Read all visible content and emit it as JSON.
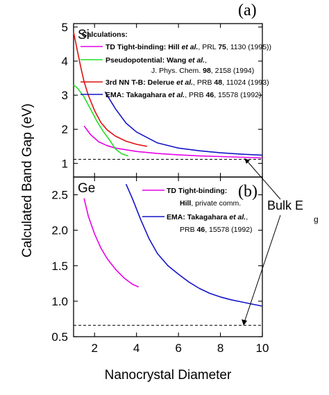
{
  "figure": {
    "panel_a_tag": "(a)",
    "panel_b_tag": "(b)",
    "shared_ylabel": "Calculated Band Gap (eV)",
    "xlabel": "Nanocrystal Diameter",
    "bulk_label": "Bulk E",
    "bulk_label_sub": "g",
    "colors": {
      "magenta": "#e600e6",
      "green": "#22dd22",
      "red": "#dd1111",
      "blue": "#1414c8",
      "dashed": "#000000"
    }
  },
  "chart_data": [
    {
      "type": "line",
      "panel": "a",
      "material": "Si",
      "ylabel": "(eV)",
      "xlim": [
        1,
        10
      ],
      "ylim": [
        0.6,
        5.1
      ],
      "x_ticks": [
        2,
        4,
        6,
        8,
        10
      ],
      "y_ticks": [
        1,
        2,
        3,
        4,
        5
      ],
      "legend_title": "Calculations:",
      "series": [
        {
          "name": "TD Tight-binding: Hill et al., PRL 75, 1130 (1995))",
          "legend_bold": "TD Tight-binding: Hill ",
          "legend_italic": "et al.",
          "legend_rest": ", PRL ",
          "legend_num": "75",
          "legend_tail": ", 1130 (1995))",
          "color": "#e600e6",
          "x": [
            1.5,
            1.8,
            2.2,
            2.6,
            3.0,
            4.0,
            5.0,
            6.0,
            7.0,
            8.0,
            9.0,
            10.0
          ],
          "y": [
            2.1,
            1.85,
            1.63,
            1.52,
            1.45,
            1.35,
            1.29,
            1.25,
            1.22,
            1.2,
            1.18,
            1.16
          ]
        },
        {
          "name": "Pseudopotential: Wang et al., J. Phys. Chem. 98, 2158 (1994)",
          "legend_bold": "Pseudopotential: Wang ",
          "legend_italic": "et al.",
          "legend_rest": ",",
          "legend_line2a": "J. Phys. Chem. ",
          "legend_line2b": "98",
          "legend_line2c": ", 2158 (1994)",
          "color": "#22dd22",
          "x": [
            1.0,
            1.2,
            1.5,
            1.8,
            2.1,
            2.4,
            2.7,
            3.0,
            3.3,
            3.6
          ],
          "y": [
            3.3,
            3.2,
            2.95,
            2.6,
            2.25,
            1.95,
            1.7,
            1.42,
            1.28,
            1.22
          ]
        },
        {
          "name": "3rd NN T-B: Delerue et al., PRB 48, 11024 (1993)",
          "legend_bold": "3rd NN T-B: Delerue ",
          "legend_italic": "et al.",
          "legend_rest": ", PRB ",
          "legend_num": "48",
          "legend_tail": ", 11024 (1993)",
          "color": "#dd1111",
          "x": [
            1.0,
            1.1,
            1.2,
            1.35,
            1.5,
            1.7,
            2.0,
            2.3,
            2.6,
            3.0,
            3.5,
            4.0,
            4.5
          ],
          "y": [
            4.85,
            4.55,
            4.25,
            3.8,
            3.4,
            3.0,
            2.55,
            2.2,
            1.98,
            1.8,
            1.65,
            1.56,
            1.5
          ]
        },
        {
          "name": "EMA: Takagahara et al., PRB 46, 15578 (1992)",
          "legend_bold": "EMA: Takagahara ",
          "legend_italic": "et al.",
          "legend_rest": ", PRB ",
          "legend_num": "46",
          "legend_tail": ", 15578 (1992)",
          "color": "#1414c8",
          "x": [
            2.5,
            3.0,
            3.5,
            4.0,
            5.0,
            6.0,
            7.0,
            8.0,
            9.0,
            10.0
          ],
          "y": [
            3.1,
            2.6,
            2.18,
            1.92,
            1.6,
            1.45,
            1.37,
            1.31,
            1.27,
            1.24
          ]
        }
      ],
      "reference_line": {
        "y": 1.12,
        "style": "dashed"
      }
    },
    {
      "type": "line",
      "panel": "b",
      "material": "Ge",
      "ylabel": "Calculated Band Gap",
      "xlabel": "Nanocrystal Diameter",
      "xlim": [
        1,
        10
      ],
      "ylim": [
        0.5,
        2.75
      ],
      "x_ticks": [
        2,
        4,
        6,
        8,
        10
      ],
      "y_ticks": [
        0.5,
        1.0,
        1.5,
        2.0,
        2.5
      ],
      "y_ticklabels": [
        "0.5",
        "1.0",
        "1.5",
        "2.0",
        "2.5"
      ],
      "series": [
        {
          "name": "TD Tight-binding: Hill, private comm.",
          "legend_bold": "TD Tight-binding:",
          "legend_line2a": "Hill",
          "legend_line2b": ", private comm.",
          "color": "#e600e6",
          "x": [
            1.5,
            1.7,
            2.0,
            2.3,
            2.6,
            3.0,
            3.4,
            3.8,
            4.1
          ],
          "y": [
            2.45,
            2.2,
            1.95,
            1.75,
            1.6,
            1.45,
            1.33,
            1.24,
            1.2
          ]
        },
        {
          "name": "EMA: Takagahara et al., PRB 46, 15578 (1992)",
          "legend_bold": "EMA:  Takagahara ",
          "legend_italic": "et al.",
          "legend_rest": ",",
          "legend_line2a": "PRB ",
          "legend_line2b": "46",
          "legend_line2c": ", 15578 (1992)",
          "color": "#1414c8",
          "x": [
            3.5,
            3.8,
            4.2,
            4.6,
            5.0,
            5.5,
            6.0,
            6.5,
            7.0,
            7.5,
            8.0,
            8.5,
            9.0,
            9.5,
            10.0
          ],
          "y": [
            2.65,
            2.45,
            2.15,
            1.88,
            1.67,
            1.5,
            1.38,
            1.27,
            1.18,
            1.11,
            1.06,
            1.02,
            0.99,
            0.96,
            0.93
          ]
        }
      ],
      "reference_line": {
        "y": 0.66,
        "style": "dashed"
      }
    }
  ]
}
